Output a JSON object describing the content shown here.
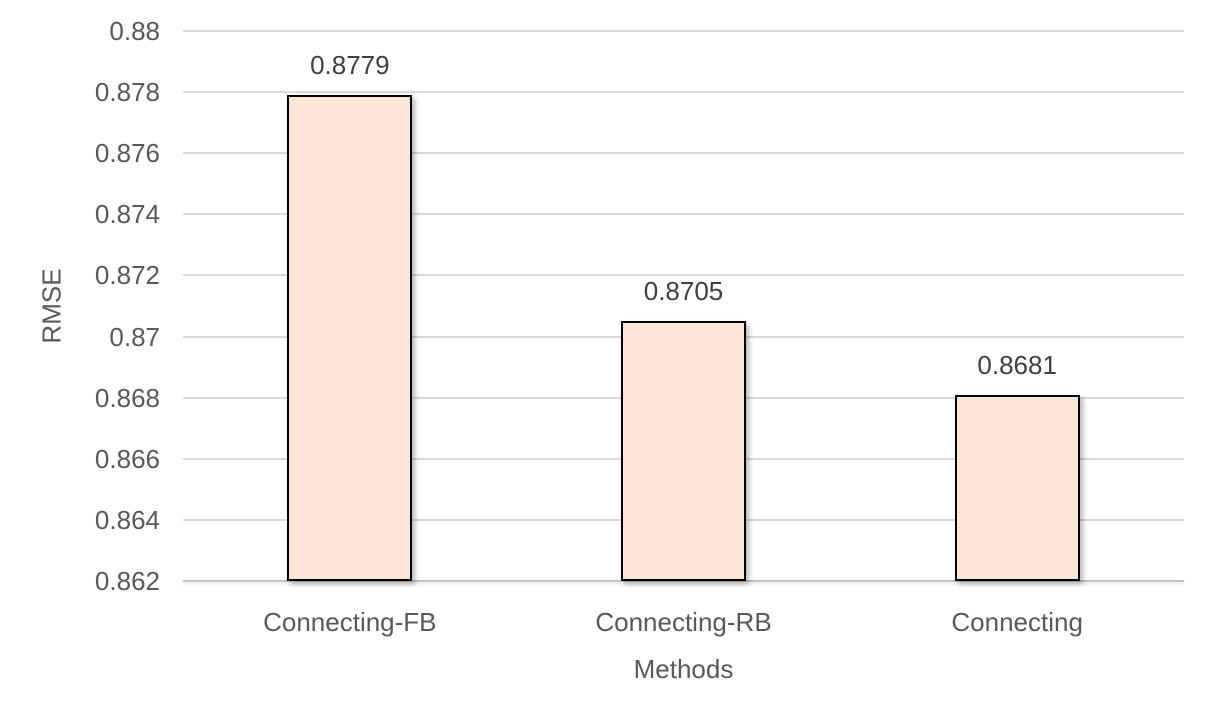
{
  "chart_data": {
    "type": "bar",
    "title": "",
    "categories": [
      "Connecting-FB",
      "Connecting-RB",
      "Connecting"
    ],
    "values": [
      0.8779,
      0.8705,
      0.8681
    ],
    "data_labels": [
      "0.8779",
      "0.8705",
      "0.8681"
    ],
    "xlabel": "Methods",
    "ylabel": "RMSE",
    "ylim": [
      0.862,
      0.88
    ],
    "ytick_step": 0.002,
    "yticks": [
      "0.88",
      "0.878",
      "0.876",
      "0.874",
      "0.872",
      "0.87",
      "0.868",
      "0.866",
      "0.864",
      "0.862"
    ],
    "grid": true,
    "legend_position": "none",
    "colors": {
      "bar_fill": "#fbe5d6",
      "bar_border": "#000000",
      "gridline": "#d9d9d9",
      "axis_line": "#c3c3c3",
      "axis_text": "#595959",
      "data_label_text": "#404040",
      "background": "#ffffff"
    }
  }
}
